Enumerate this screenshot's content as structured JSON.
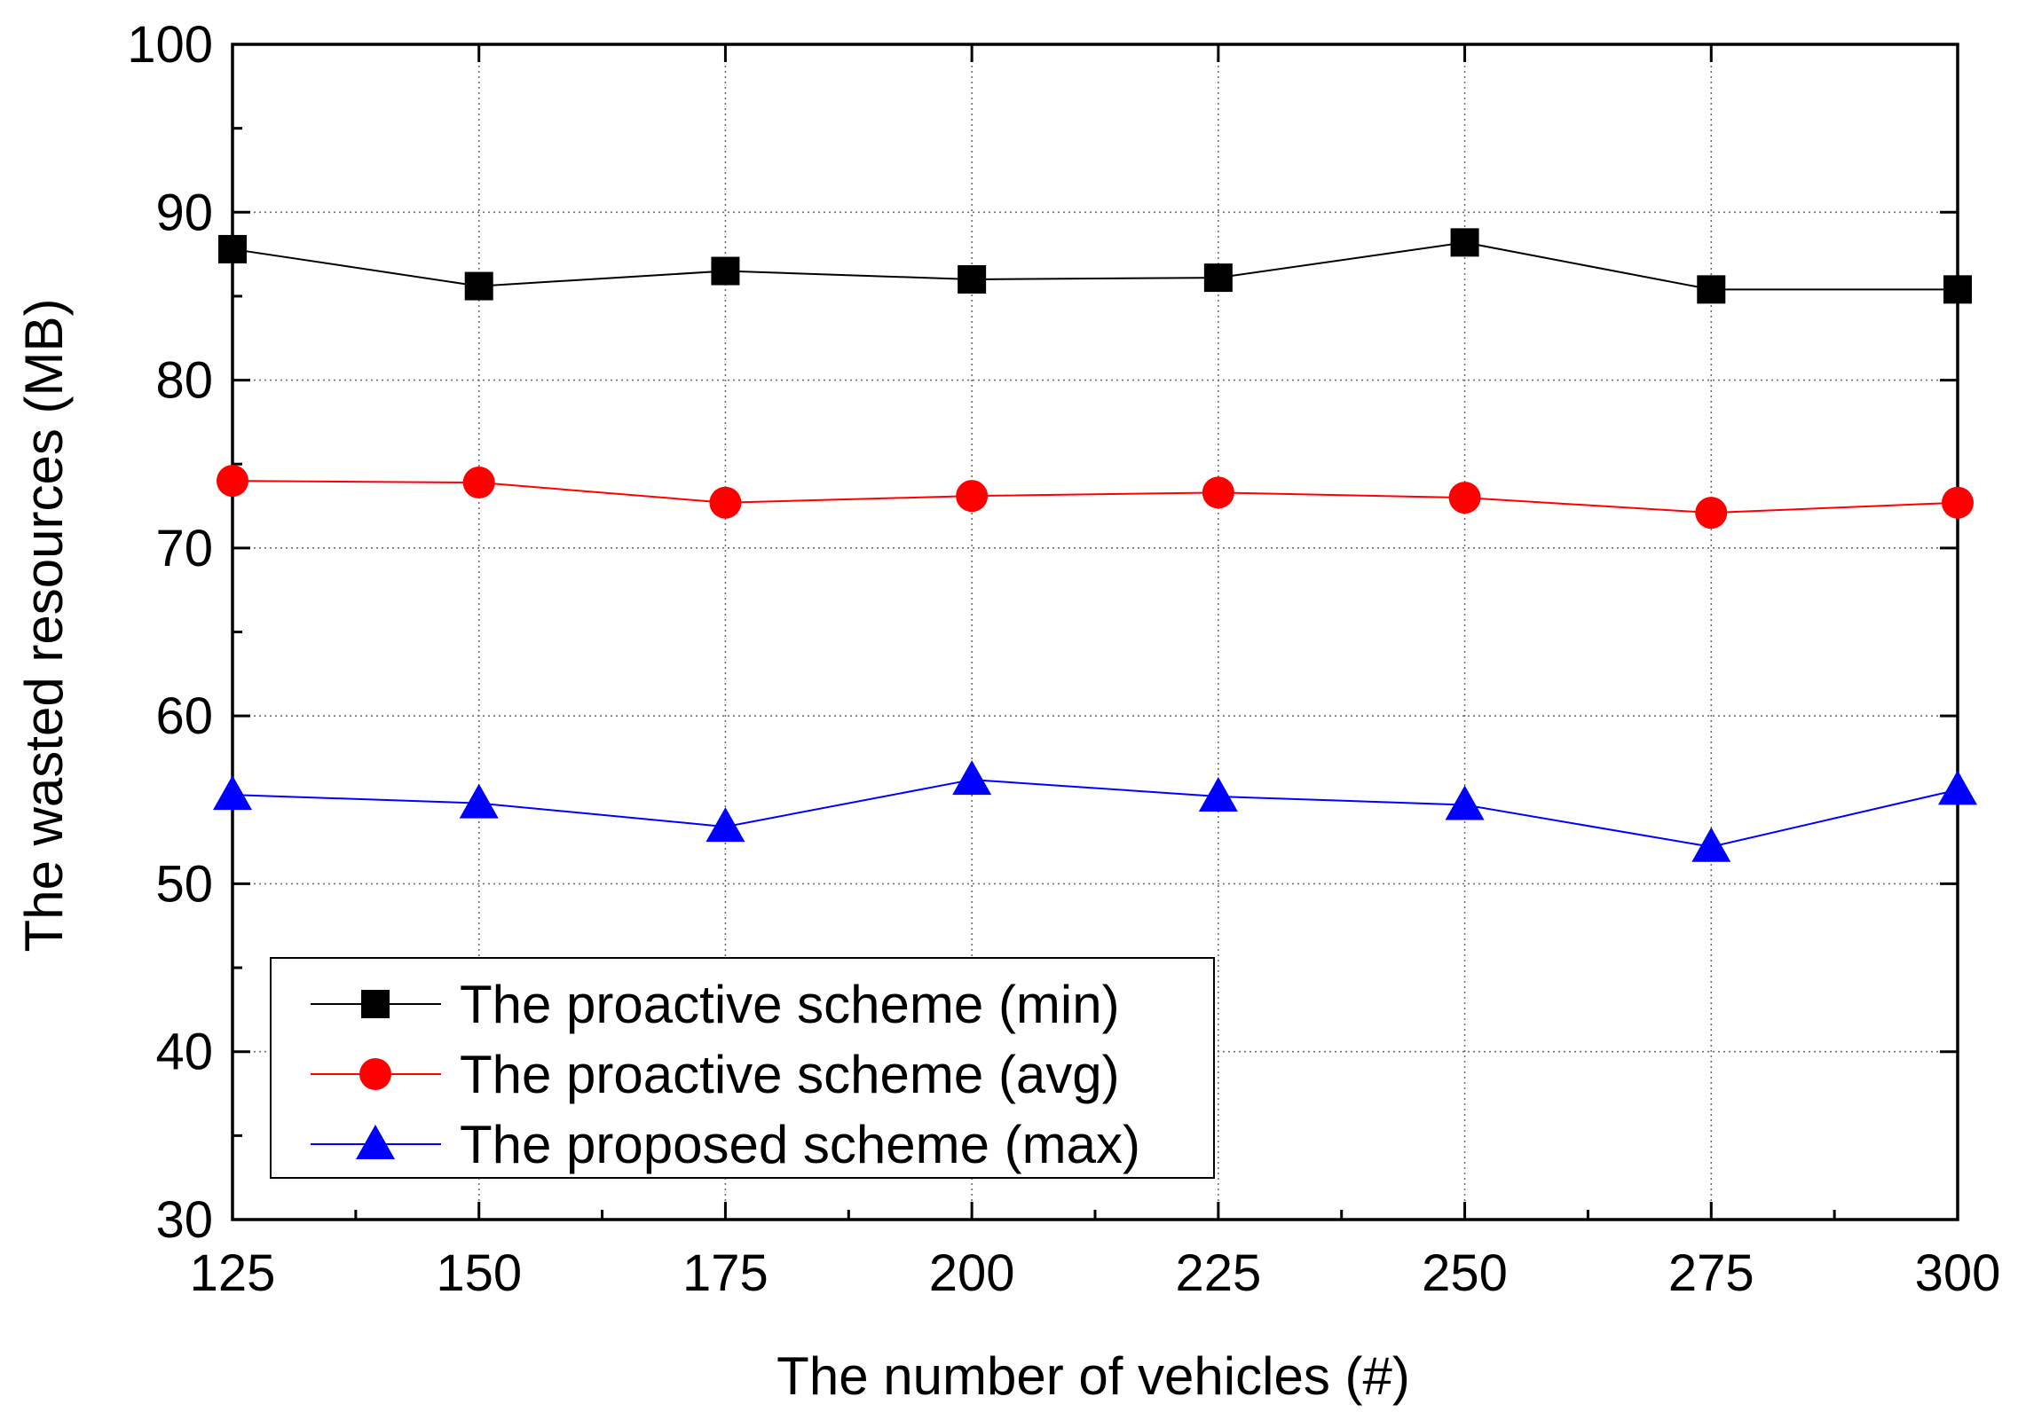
{
  "chart_data": {
    "type": "line",
    "title": "",
    "xlabel": "The number of vehicles (#)",
    "ylabel": "The wasted resources (MB)",
    "xlim": [
      125,
      300
    ],
    "ylim": [
      30,
      100
    ],
    "xticks": [
      125,
      150,
      175,
      200,
      225,
      250,
      275,
      300
    ],
    "yticks": [
      30,
      40,
      50,
      60,
      70,
      80,
      90,
      100
    ],
    "x_minor_step": 12.5,
    "y_minor_step": 5,
    "grid": true,
    "legend_position": "bottom-left",
    "x": [
      125,
      150,
      175,
      200,
      225,
      250,
      275,
      300
    ],
    "series": [
      {
        "name": "The proactive scheme (min)",
        "color": "#000000",
        "marker": "square",
        "values": [
          87.8,
          85.6,
          86.5,
          86.0,
          86.1,
          88.2,
          85.4,
          85.4
        ]
      },
      {
        "name": "The proactive scheme (avg)",
        "color": "#ff0000",
        "marker": "circle",
        "values": [
          74.0,
          73.9,
          72.7,
          73.1,
          73.3,
          73.0,
          72.1,
          72.7
        ]
      },
      {
        "name": "The proposed scheme (max)",
        "color": "#0000ff",
        "marker": "triangle",
        "values": [
          55.3,
          54.8,
          53.4,
          56.2,
          55.2,
          54.7,
          52.2,
          55.6
        ]
      }
    ]
  }
}
